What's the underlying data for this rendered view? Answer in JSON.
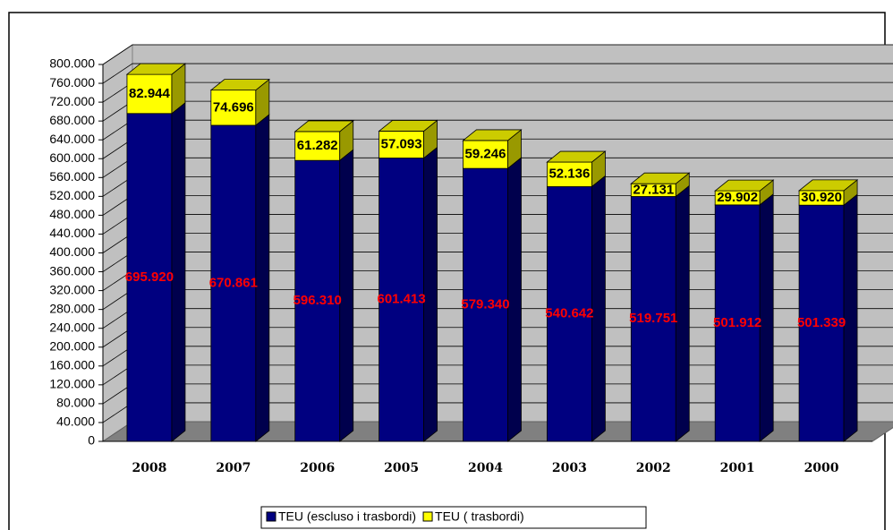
{
  "chart_data": {
    "type": "bar3d_stacked",
    "categories": [
      "2008",
      "2007",
      "2006",
      "2005",
      "2004",
      "2003",
      "2002",
      "2001",
      "2000"
    ],
    "series": [
      {
        "name": "TEU (escluso i trasbordi)",
        "color": "#000080",
        "values": [
          695920,
          670861,
          596310,
          601413,
          579340,
          540642,
          519751,
          501912,
          501339
        ],
        "value_labels": [
          "695.920",
          "670.861",
          "596.310",
          "601.413",
          "579.340",
          "540.642",
          "519.751",
          "501.912",
          "501.339"
        ],
        "label_color": "#ff0000"
      },
      {
        "name": "TEU ( trasbordi)",
        "color": "#ffff00",
        "values": [
          82944,
          74696,
          61282,
          57093,
          59246,
          52136,
          27131,
          29902,
          30920
        ],
        "value_labels": [
          "82.944",
          "74.696",
          "61.282",
          "57.093",
          "59.246",
          "52.136",
          "27.131",
          "29.902",
          "30.920"
        ],
        "label_color": "#000000"
      }
    ],
    "ylim": [
      0,
      800000
    ],
    "yticks": [
      0,
      {
        "value": 40000,
        "label": "40.000"
      },
      {
        "value": 80000,
        "label": "80.000"
      },
      {
        "value": 120000,
        "label": "120.000"
      },
      {
        "value": 160000,
        "label": "160.000"
      },
      {
        "value": 200000,
        "label": "200.000"
      },
      {
        "value": 240000,
        "label": "240.000"
      },
      {
        "value": 280000,
        "label": "280.000"
      },
      {
        "value": 320000,
        "label": "320.000"
      },
      {
        "value": 360000,
        "label": "360.000"
      },
      {
        "value": 400000,
        "label": "400.000"
      },
      {
        "value": 440000,
        "label": "440.000"
      },
      {
        "value": 480000,
        "label": "480.000"
      },
      {
        "value": 520000,
        "label": "520.000"
      },
      {
        "value": 560000,
        "label": "560.000"
      },
      {
        "value": 600000,
        "label": "600.000"
      },
      {
        "value": 640000,
        "label": "640.000"
      },
      {
        "value": 680000,
        "label": "680.000"
      },
      {
        "value": 720000,
        "label": "720.000"
      },
      {
        "value": 760000,
        "label": "760.000"
      },
      {
        "value": 800000,
        "label": "800.000"
      }
    ],
    "grid": true,
    "legend": "bottom"
  }
}
